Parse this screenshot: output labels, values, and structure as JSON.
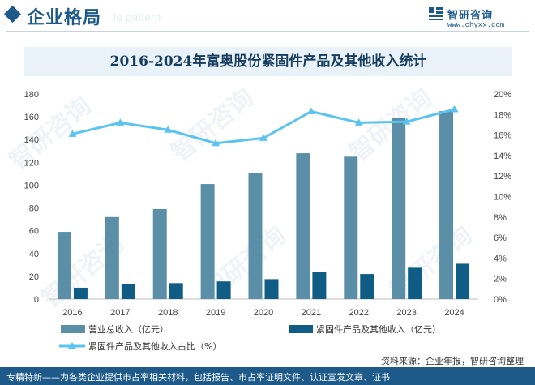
{
  "header": {
    "title": "企业格局",
    "ghost_text": "le pattern"
  },
  "brand": {
    "name": "智研咨询",
    "url": "www.chyxx.com"
  },
  "watermark": {
    "text": "智研咨询"
  },
  "chart_data": {
    "type": "bar",
    "title": "2016-2024年富奥股份紧固件产品及其他收入统计",
    "categories": [
      "2016",
      "2017",
      "2018",
      "2019",
      "2020",
      "2021",
      "2022",
      "2023",
      "2024"
    ],
    "series": [
      {
        "name": "营业总收入（亿元）",
        "type": "bar",
        "axis": "left",
        "color": "#5b8fa8",
        "values": [
          59,
          72,
          79,
          101,
          111,
          128,
          125,
          159,
          165
        ]
      },
      {
        "name": "紧固件产品及其他收入（亿元）",
        "type": "bar",
        "axis": "left",
        "color": "#0f5d84",
        "values": [
          10,
          13,
          14,
          15.5,
          17.5,
          24,
          22,
          27.5,
          31
        ]
      },
      {
        "name": "紧固件产品及其他收入占比（%）",
        "type": "line",
        "axis": "right",
        "color": "#5bc3ef",
        "values": [
          16.1,
          17.2,
          16.5,
          15.2,
          15.7,
          18.3,
          17.2,
          17.3,
          18.5
        ]
      }
    ],
    "y_left": {
      "min": 0,
      "max": 180,
      "step": 20,
      "ticks": [
        "0",
        "20",
        "40",
        "60",
        "80",
        "100",
        "120",
        "140",
        "160",
        "180"
      ]
    },
    "y_right": {
      "min": 0,
      "max": 20,
      "step": 2,
      "ticks": [
        "0%",
        "2%",
        "4%",
        "6%",
        "8%",
        "10%",
        "12%",
        "14%",
        "16%",
        "18%",
        "20%"
      ]
    },
    "grid": false,
    "legend_position": "bottom"
  },
  "source": "资料来源：企业年报，智研咨询整理",
  "footer": "专精特新——为各类企业提供市占率相关材料，包括报告、市占率证明文件、认证宣发文章、证书"
}
